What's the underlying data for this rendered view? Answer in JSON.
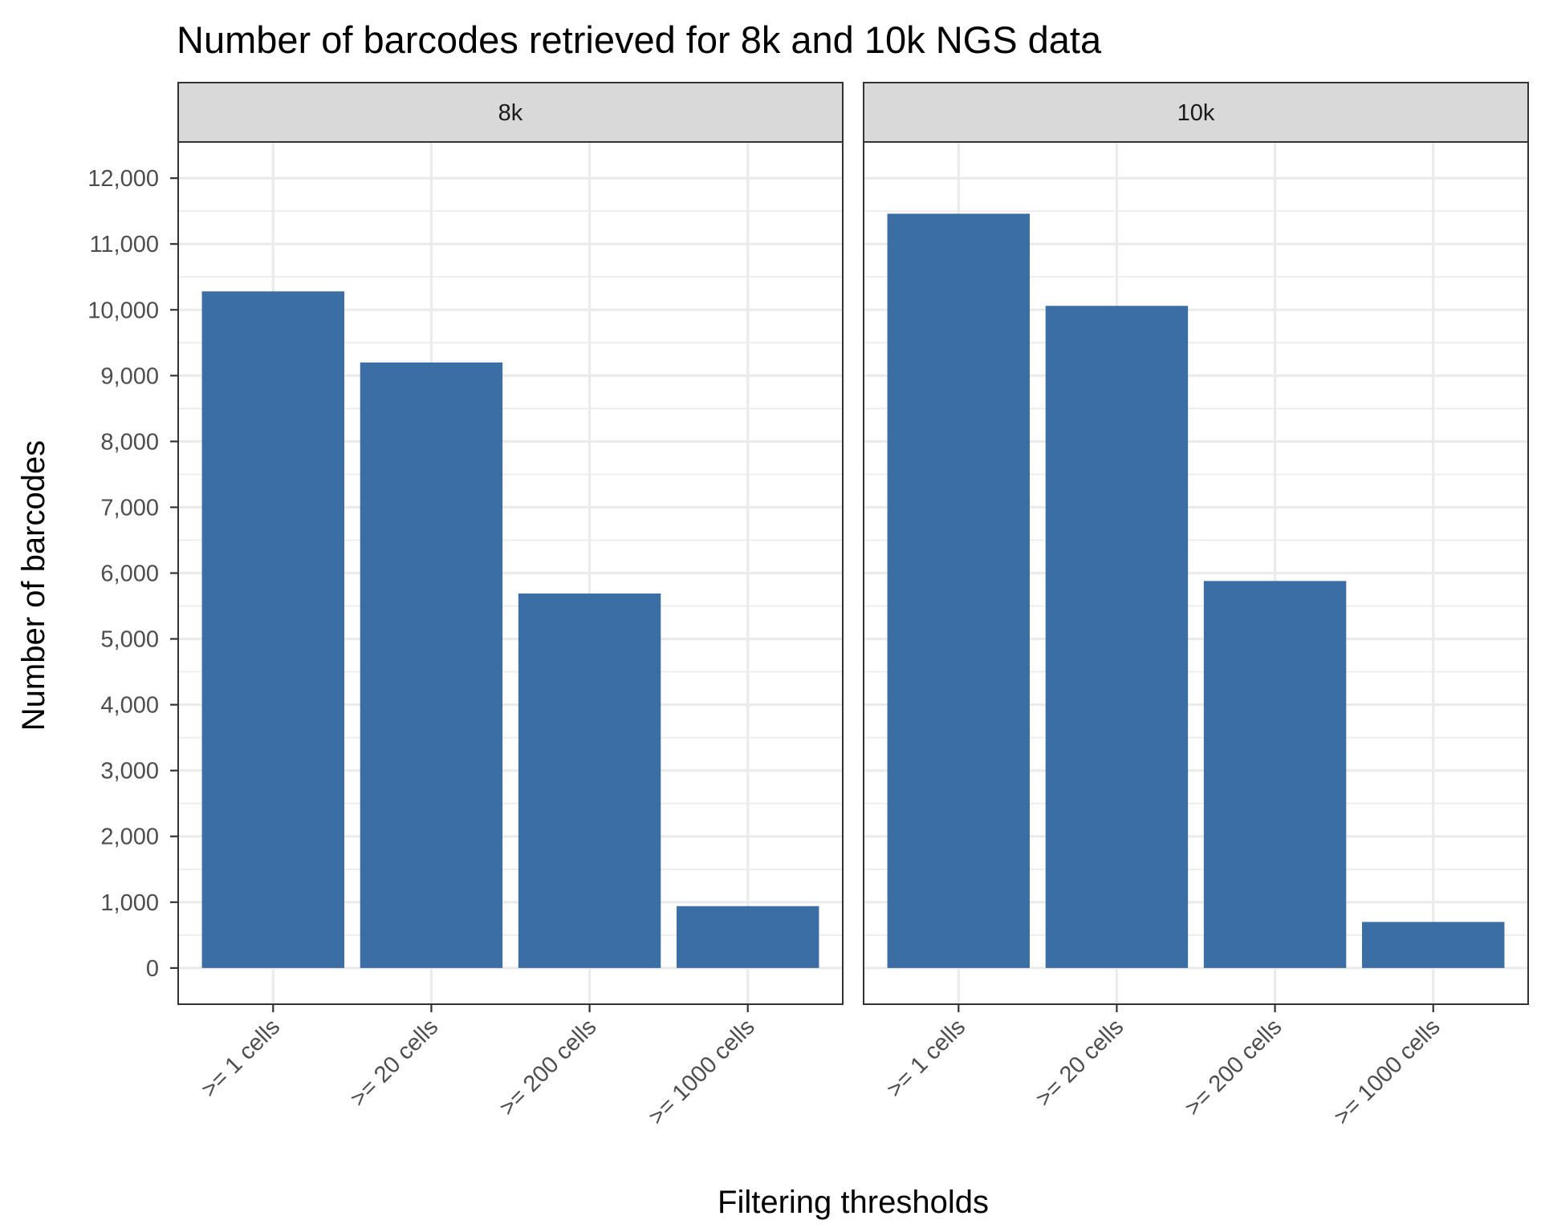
{
  "chart_data": {
    "type": "bar",
    "title": "Number of barcodes retrieved for 8k and 10k NGS data",
    "xlabel": "Filtering thresholds",
    "ylabel": "Number of barcodes",
    "categories": [
      ">= 1 cells",
      ">= 20 cells",
      ">= 200 cells",
      ">= 1000 cells"
    ],
    "ylim": [
      -550,
      12550
    ],
    "yticks": [
      0,
      1000,
      2000,
      3000,
      4000,
      5000,
      6000,
      7000,
      8000,
      9000,
      10000,
      11000,
      12000
    ],
    "ytick_labels": [
      "0",
      "1,000",
      "2,000",
      "3,000",
      "4,000",
      "5,000",
      "6,000",
      "7,000",
      "8,000",
      "9,000",
      "10,000",
      "11,000",
      "12,000"
    ],
    "grid": true,
    "facets": [
      {
        "label": "8k",
        "values": [
          10280,
          9200,
          5690,
          940
        ]
      },
      {
        "label": "10k",
        "values": [
          11460,
          10060,
          5880,
          700
        ]
      }
    ],
    "bar_color": "#3a6ea5"
  }
}
